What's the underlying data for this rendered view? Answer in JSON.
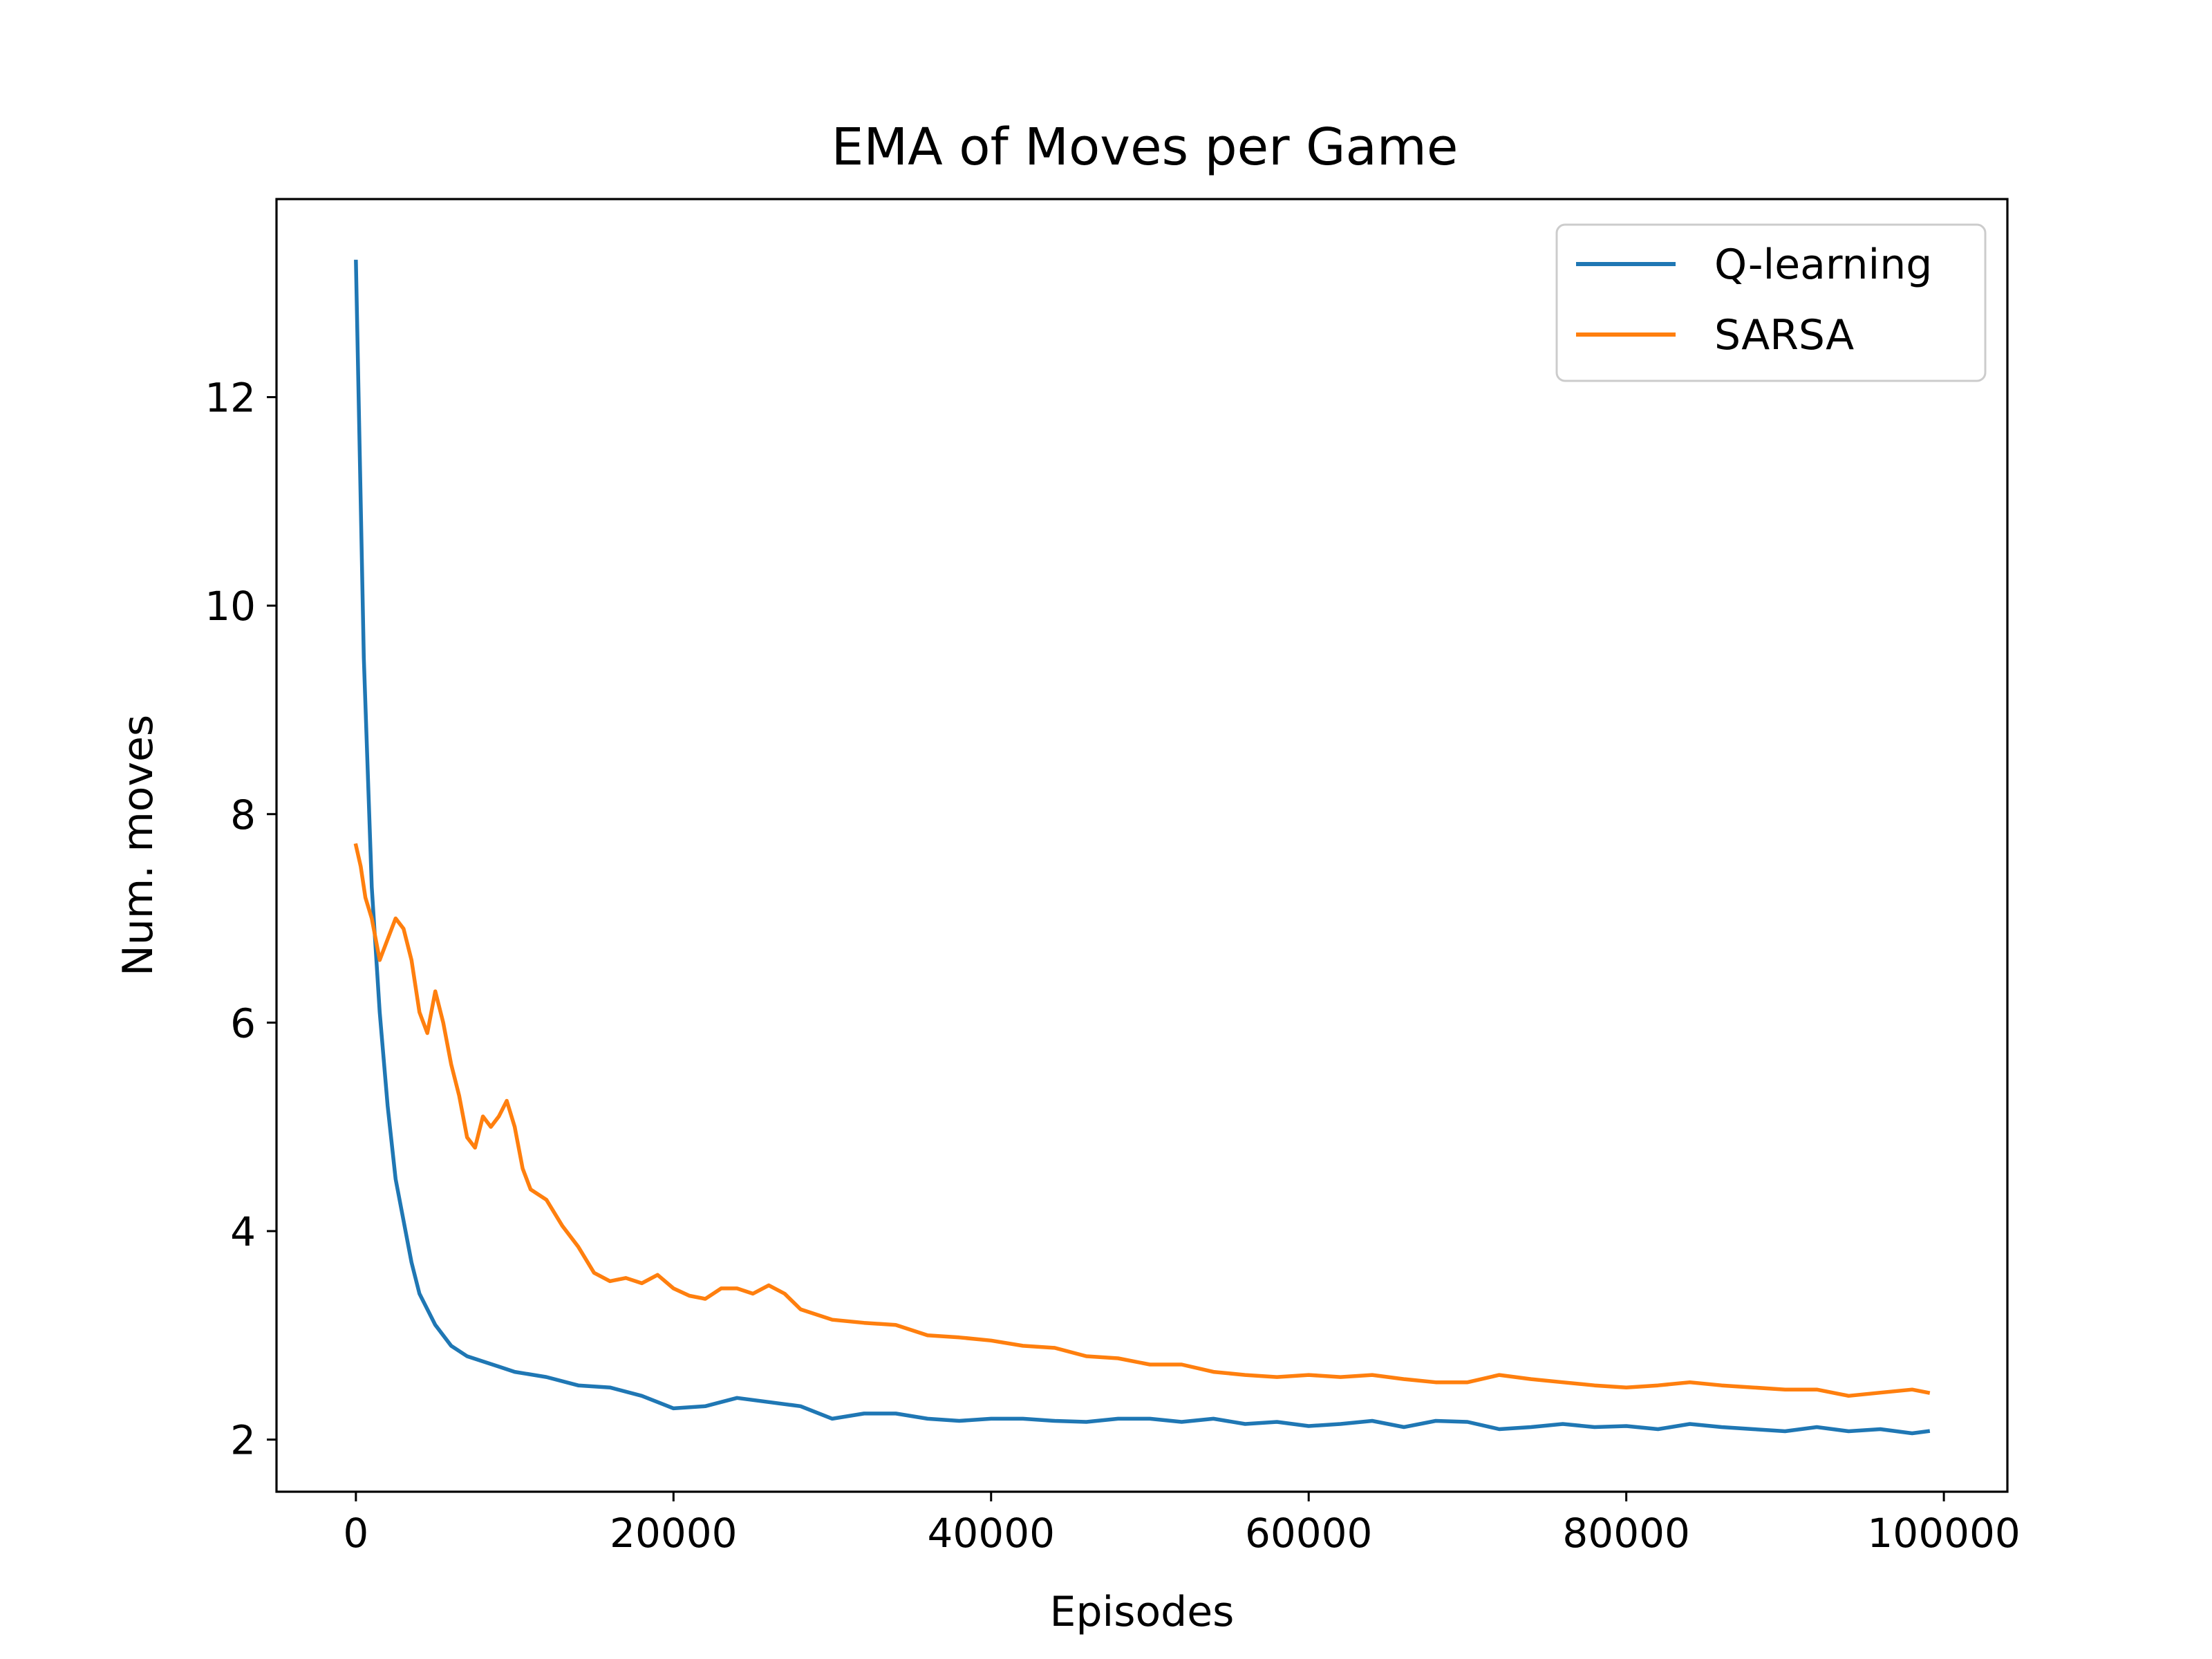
{
  "chart_data": {
    "type": "line",
    "title": "EMA of Moves per Game",
    "xlabel": "Episodes",
    "ylabel": "Num. moves",
    "xlim": [
      -5000,
      104000
    ],
    "ylim": [
      1.5,
      13.9
    ],
    "xticks": [
      0,
      20000,
      40000,
      60000,
      80000,
      100000
    ],
    "xtick_labels": [
      "0",
      "20000",
      "40000",
      "60000",
      "80000",
      "100000"
    ],
    "yticks": [
      2,
      4,
      6,
      8,
      10,
      12
    ],
    "ytick_labels": [
      "2",
      "4",
      "6",
      "8",
      "10",
      "12"
    ],
    "grid": false,
    "legend_position": "top-right",
    "series": [
      {
        "name": "Q-learning",
        "color": "#1f77b4",
        "x": [
          0,
          500,
          1000,
          1500,
          2000,
          2500,
          3000,
          3500,
          4000,
          5000,
          6000,
          7000,
          8000,
          9000,
          10000,
          12000,
          14000,
          16000,
          18000,
          20000,
          22000,
          24000,
          26000,
          28000,
          30000,
          32000,
          34000,
          36000,
          38000,
          40000,
          42000,
          44000,
          46000,
          48000,
          50000,
          52000,
          54000,
          56000,
          58000,
          60000,
          62000,
          64000,
          66000,
          68000,
          70000,
          72000,
          74000,
          76000,
          78000,
          80000,
          82000,
          84000,
          86000,
          88000,
          90000,
          92000,
          94000,
          96000,
          98000,
          99000
        ],
        "y": [
          13.3,
          9.5,
          7.3,
          6.1,
          5.2,
          4.5,
          4.1,
          3.7,
          3.4,
          3.1,
          2.9,
          2.8,
          2.75,
          2.7,
          2.65,
          2.6,
          2.52,
          2.5,
          2.42,
          2.3,
          2.32,
          2.4,
          2.36,
          2.32,
          2.2,
          2.25,
          2.25,
          2.2,
          2.18,
          2.2,
          2.2,
          2.18,
          2.17,
          2.2,
          2.2,
          2.17,
          2.2,
          2.15,
          2.17,
          2.13,
          2.15,
          2.18,
          2.12,
          2.18,
          2.17,
          2.1,
          2.12,
          2.15,
          2.12,
          2.13,
          2.1,
          2.15,
          2.12,
          2.1,
          2.08,
          2.12,
          2.08,
          2.1,
          2.06,
          2.08
        ]
      },
      {
        "name": "SARSA",
        "color": "#ff7f0e",
        "x": [
          0,
          300,
          600,
          1000,
          1500,
          2000,
          2500,
          3000,
          3500,
          4000,
          4500,
          5000,
          5500,
          6000,
          6500,
          7000,
          7500,
          8000,
          8500,
          9000,
          9500,
          10000,
          10500,
          11000,
          12000,
          13000,
          14000,
          15000,
          16000,
          17000,
          18000,
          19000,
          20000,
          21000,
          22000,
          23000,
          24000,
          25000,
          26000,
          27000,
          28000,
          30000,
          32000,
          34000,
          36000,
          38000,
          40000,
          42000,
          44000,
          46000,
          48000,
          50000,
          52000,
          54000,
          56000,
          58000,
          60000,
          62000,
          64000,
          66000,
          68000,
          70000,
          72000,
          74000,
          76000,
          78000,
          80000,
          82000,
          84000,
          86000,
          88000,
          90000,
          92000,
          94000,
          96000,
          98000,
          99000
        ],
        "y": [
          7.7,
          7.5,
          7.2,
          7.0,
          6.6,
          6.8,
          7.0,
          6.9,
          6.6,
          6.1,
          5.9,
          6.3,
          6.0,
          5.6,
          5.3,
          4.9,
          4.8,
          5.1,
          5.0,
          5.1,
          5.25,
          5.0,
          4.6,
          4.4,
          4.3,
          4.05,
          3.85,
          3.6,
          3.52,
          3.55,
          3.5,
          3.58,
          3.45,
          3.38,
          3.35,
          3.45,
          3.45,
          3.4,
          3.48,
          3.4,
          3.25,
          3.15,
          3.12,
          3.1,
          3.0,
          2.98,
          2.95,
          2.9,
          2.88,
          2.8,
          2.78,
          2.72,
          2.72,
          2.65,
          2.62,
          2.6,
          2.62,
          2.6,
          2.62,
          2.58,
          2.55,
          2.55,
          2.62,
          2.58,
          2.55,
          2.52,
          2.5,
          2.52,
          2.55,
          2.52,
          2.5,
          2.48,
          2.48,
          2.42,
          2.45,
          2.48,
          2.45
        ]
      }
    ]
  }
}
